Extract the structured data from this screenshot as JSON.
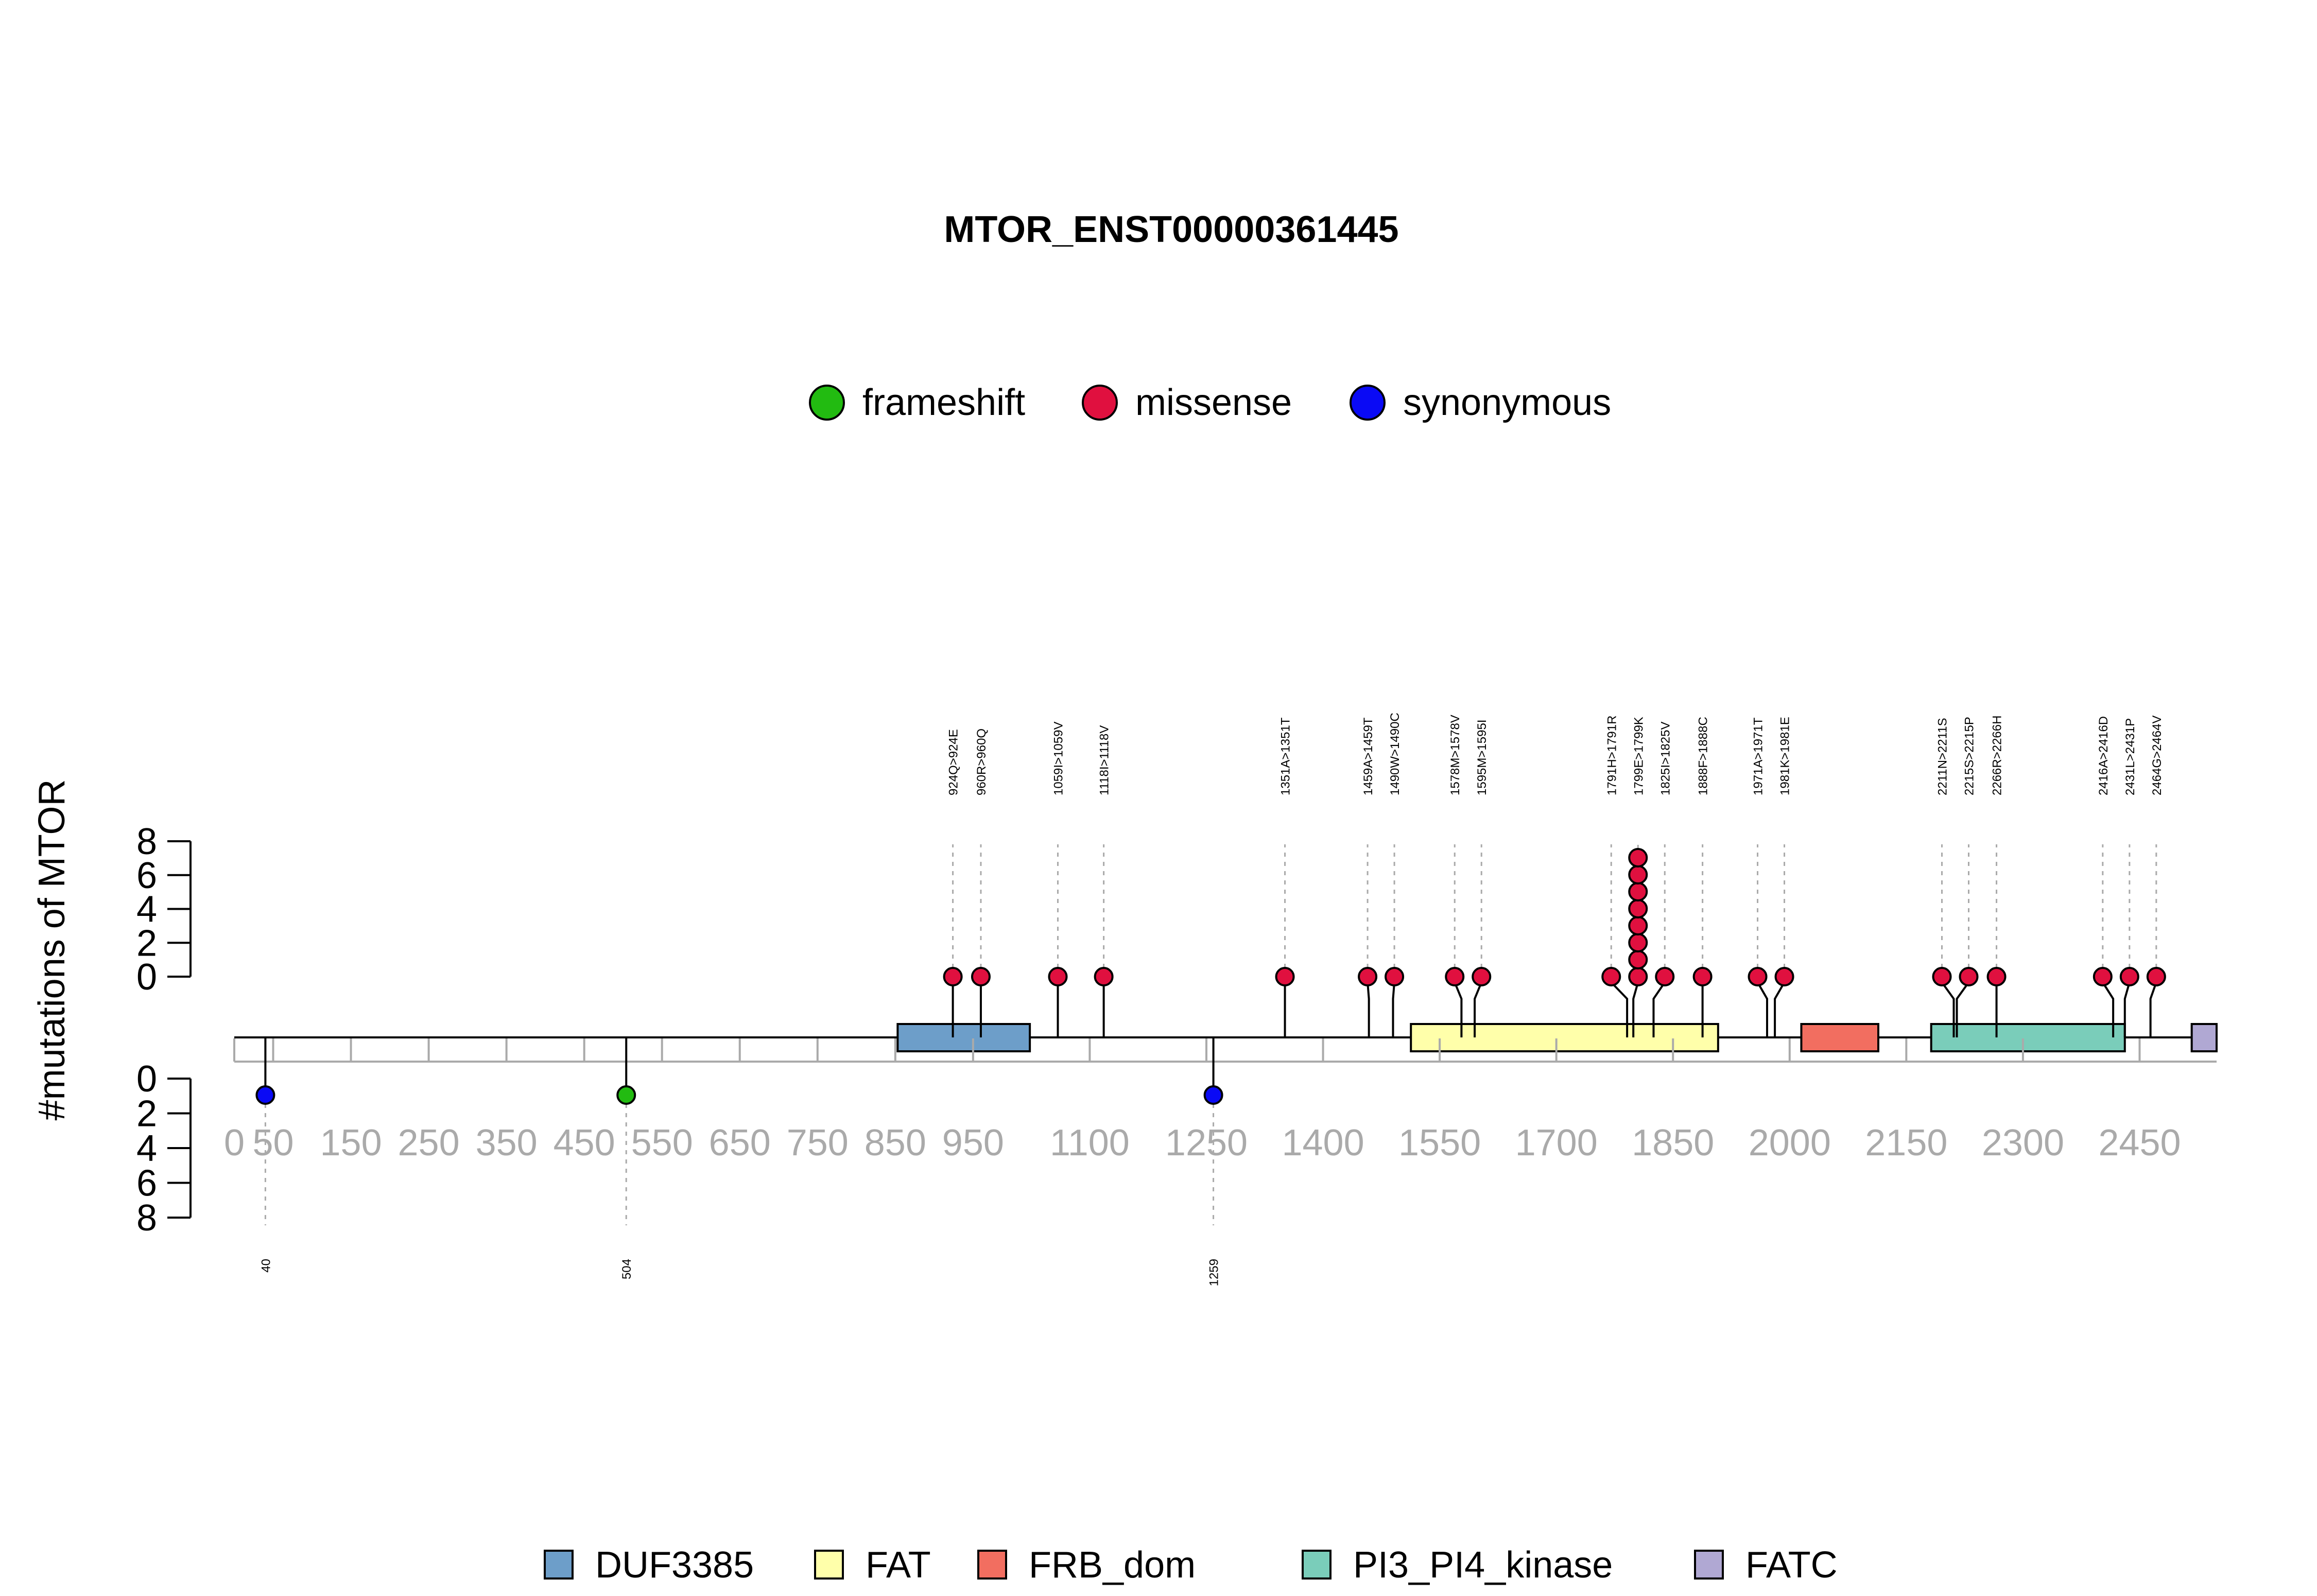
{
  "chart_data": {
    "type": "lollipop",
    "title": "MTOR_ENST00000361445",
    "ylabel": "#mutations of MTOR",
    "protein_length": 2549,
    "upper_yticks": [
      "0",
      "2",
      "4",
      "6",
      "8"
    ],
    "lower_yticks": [
      "0",
      "2",
      "4",
      "6",
      "8"
    ],
    "xticks": [
      {
        "pos": 0,
        "label": "0"
      },
      {
        "pos": 50,
        "label": "50"
      },
      {
        "pos": 150,
        "label": "150"
      },
      {
        "pos": 250,
        "label": "250"
      },
      {
        "pos": 350,
        "label": "350"
      },
      {
        "pos": 450,
        "label": "450"
      },
      {
        "pos": 550,
        "label": "550"
      },
      {
        "pos": 650,
        "label": "650"
      },
      {
        "pos": 750,
        "label": "750"
      },
      {
        "pos": 850,
        "label": "850"
      },
      {
        "pos": 950,
        "label": "950"
      },
      {
        "pos": 1100,
        "label": "1100"
      },
      {
        "pos": 1250,
        "label": "1250"
      },
      {
        "pos": 1400,
        "label": "1400"
      },
      {
        "pos": 1550,
        "label": "1550"
      },
      {
        "pos": 1700,
        "label": "1700"
      },
      {
        "pos": 1850,
        "label": "1850"
      },
      {
        "pos": 2000,
        "label": "2000"
      },
      {
        "pos": 2150,
        "label": "2150"
      },
      {
        "pos": 2300,
        "label": "2300"
      },
      {
        "pos": 2450,
        "label": "2450"
      }
    ],
    "legend_top": [
      {
        "name": "frameshift",
        "color": "#22BB11"
      },
      {
        "name": "missense",
        "color": "#E0103F"
      },
      {
        "name": "synonymous",
        "color": "#0A0AF5"
      }
    ],
    "domains": [
      {
        "name": "DUF3385",
        "start": 853,
        "end": 1023,
        "color": "#6D9EC9"
      },
      {
        "name": "FAT",
        "start": 1513,
        "end": 1908,
        "color": "#FFFFAA"
      },
      {
        "name": "FRB_dom",
        "start": 2015,
        "end": 2114,
        "color": "#F26E60"
      },
      {
        "name": "PI3_PI4_kinase",
        "start": 2182,
        "end": 2431,
        "color": "#7ACDBA"
      },
      {
        "name": "FATC",
        "start": 2517,
        "end": 2549,
        "color": "#B0A8D3"
      }
    ],
    "mutations_upper": [
      {
        "label": "924Q>924E",
        "pos": 924,
        "count": 1,
        "type": "missense"
      },
      {
        "label": "960R>960Q",
        "pos": 960,
        "count": 1,
        "type": "missense"
      },
      {
        "label": "1059I>1059V",
        "pos": 1059,
        "count": 1,
        "type": "missense"
      },
      {
        "label": "1118I>1118V",
        "pos": 1118,
        "count": 1,
        "type": "missense"
      },
      {
        "label": "1351A>1351T",
        "pos": 1351,
        "count": 1,
        "type": "missense"
      },
      {
        "label": "1459A>1459T",
        "pos": 1459,
        "count": 1,
        "type": "missense"
      },
      {
        "label": "1490W>1490C",
        "pos": 1490,
        "count": 1,
        "type": "missense"
      },
      {
        "label": "1578M>1578V",
        "pos": 1578,
        "count": 1,
        "type": "missense"
      },
      {
        "label": "1595M>1595I",
        "pos": 1595,
        "count": 1,
        "type": "missense"
      },
      {
        "label": "1791H>1791R",
        "pos": 1791,
        "count": 1,
        "type": "missense"
      },
      {
        "label": "1799E>1799K",
        "pos": 1799,
        "count": 8,
        "type": "missense"
      },
      {
        "label": "1825I>1825V",
        "pos": 1825,
        "count": 1,
        "type": "missense"
      },
      {
        "label": "1888F>1888C",
        "pos": 1888,
        "count": 1,
        "type": "missense"
      },
      {
        "label": "1971A>1971T",
        "pos": 1971,
        "count": 1,
        "type": "missense"
      },
      {
        "label": "1981K>1981E",
        "pos": 1981,
        "count": 1,
        "type": "missense"
      },
      {
        "label": "2211N>2211S",
        "pos": 2211,
        "count": 1,
        "type": "missense"
      },
      {
        "label": "2215S>2215P",
        "pos": 2215,
        "count": 1,
        "type": "missense"
      },
      {
        "label": "2266R>2266H",
        "pos": 2266,
        "count": 1,
        "type": "missense"
      },
      {
        "label": "2416A>2416D",
        "pos": 2416,
        "count": 1,
        "type": "missense"
      },
      {
        "label": "2431L>2431P",
        "pos": 2431,
        "count": 1,
        "type": "missense"
      },
      {
        "label": "2464G>2464V",
        "pos": 2464,
        "count": 1,
        "type": "missense"
      }
    ],
    "mutations_lower": [
      {
        "label": "40",
        "pos": 40,
        "count": 1,
        "type": "synonymous"
      },
      {
        "label": "504",
        "pos": 504,
        "count": 1,
        "type": "frameshift"
      },
      {
        "label": "1259",
        "pos": 1259,
        "count": 1,
        "type": "synonymous"
      }
    ]
  }
}
